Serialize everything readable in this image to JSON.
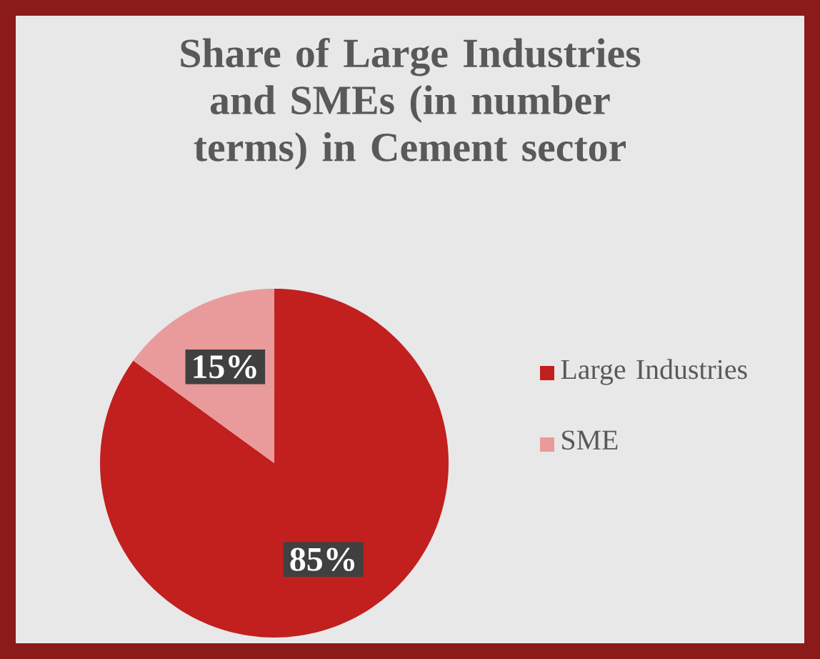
{
  "chart_data": {
    "type": "pie",
    "title": "Share of Large Industries and SMEs (in number terms) in Cement sector",
    "categories": [
      "Large Industries",
      "SME"
    ],
    "values": [
      85,
      15
    ],
    "colors": [
      "#c21f1f",
      "#e99b9b"
    ],
    "value_labels": [
      "85%",
      "15%"
    ],
    "legend": "right"
  }
}
